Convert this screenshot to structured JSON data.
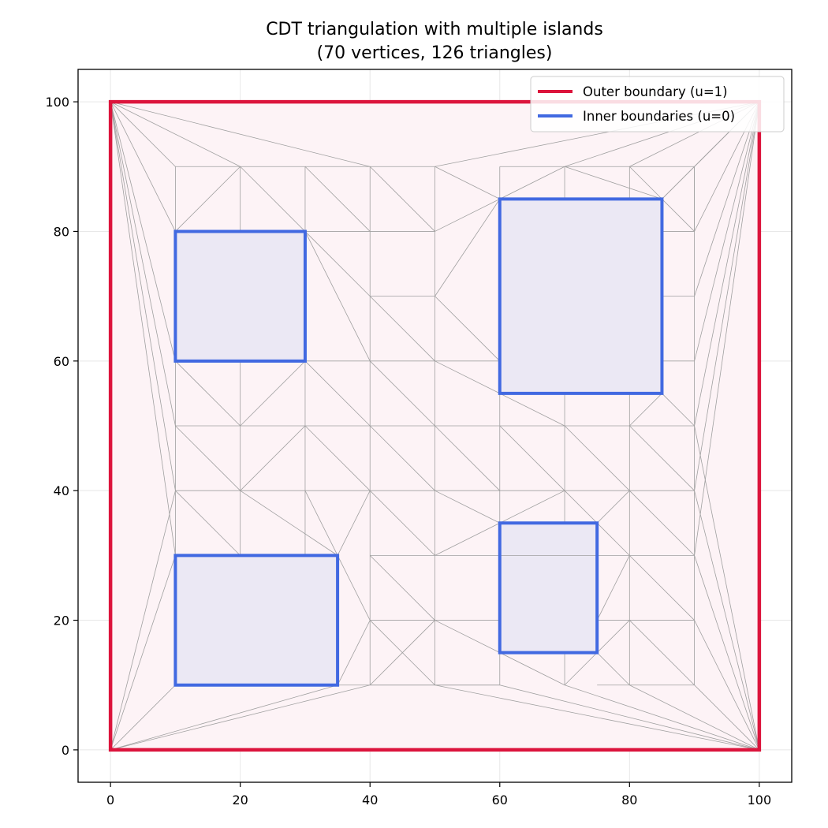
{
  "chart_data": {
    "type": "triangulation",
    "title_line1": "CDT triangulation with multiple islands",
    "title_line2": "(70 vertices, 126 triangles)",
    "xlabel": "",
    "ylabel": "",
    "xlim": [
      -5,
      105
    ],
    "ylim": [
      -5,
      105
    ],
    "x_ticks": [
      0,
      20,
      40,
      60,
      80,
      100
    ],
    "y_ticks": [
      0,
      20,
      40,
      60,
      80,
      100
    ],
    "grid": true,
    "legend_placement": "top-right",
    "colors": {
      "outer": "#dc143c",
      "inner": "#4169e1",
      "mesh": "#a0a0a0",
      "domain_fill": "#fdf3f6",
      "hole_fill": "#ebe8f4",
      "grid": "#e8e8e8"
    },
    "outer_boundary": {
      "label": "Outer boundary (u=1)",
      "polygon": [
        [
          0,
          0
        ],
        [
          100,
          0
        ],
        [
          100,
          100
        ],
        [
          0,
          100
        ]
      ]
    },
    "inner_boundaries": {
      "label": "Inner boundaries (u=0)",
      "polygons": [
        [
          [
            10,
            60
          ],
          [
            30,
            60
          ],
          [
            30,
            80
          ],
          [
            10,
            80
          ]
        ],
        [
          [
            60,
            55
          ],
          [
            85,
            55
          ],
          [
            85,
            85
          ],
          [
            60,
            85
          ]
        ],
        [
          [
            10,
            10
          ],
          [
            35,
            10
          ],
          [
            35,
            30
          ],
          [
            10,
            30
          ]
        ],
        [
          [
            60,
            15
          ],
          [
            75,
            15
          ],
          [
            75,
            35
          ],
          [
            60,
            35
          ]
        ]
      ]
    },
    "mesh_edges": [
      [
        [
          10,
          90
        ],
        [
          20,
          90
        ]
      ],
      [
        [
          20,
          90
        ],
        [
          30,
          90
        ]
      ],
      [
        [
          30,
          90
        ],
        [
          40,
          90
        ]
      ],
      [
        [
          40,
          90
        ],
        [
          50,
          90
        ]
      ],
      [
        [
          60,
          90
        ],
        [
          70,
          90
        ]
      ],
      [
        [
          70,
          90
        ],
        [
          80,
          90
        ]
      ],
      [
        [
          80,
          90
        ],
        [
          90,
          90
        ]
      ],
      [
        [
          10,
          50
        ],
        [
          90,
          50
        ]
      ],
      [
        [
          10,
          40
        ],
        [
          90,
          40
        ]
      ],
      [
        [
          40,
          30
        ],
        [
          90,
          30
        ]
      ],
      [
        [
          40,
          20
        ],
        [
          60,
          20
        ]
      ],
      [
        [
          75,
          20
        ],
        [
          90,
          20
        ]
      ],
      [
        [
          40,
          10
        ],
        [
          60,
          10
        ]
      ],
      [
        [
          75,
          10
        ],
        [
          90,
          10
        ]
      ],
      [
        [
          30,
          80
        ],
        [
          50,
          80
        ]
      ],
      [
        [
          40,
          70
        ],
        [
          50,
          70
        ]
      ],
      [
        [
          30,
          60
        ],
        [
          60,
          60
        ]
      ],
      [
        [
          85,
          60
        ],
        [
          90,
          60
        ]
      ],
      [
        [
          85,
          70
        ],
        [
          90,
          70
        ]
      ],
      [
        [
          85,
          80
        ],
        [
          90,
          80
        ]
      ],
      [
        [
          90,
          80
        ],
        [
          90,
          90
        ]
      ],
      [
        [
          10,
          90
        ],
        [
          10,
          80
        ]
      ],
      [
        [
          10,
          60
        ],
        [
          10,
          30
        ]
      ],
      [
        [
          20,
          90
        ],
        [
          20,
          80
        ]
      ],
      [
        [
          20,
          60
        ],
        [
          20,
          30
        ]
      ],
      [
        [
          30,
          90
        ],
        [
          30,
          80
        ]
      ],
      [
        [
          30,
          60
        ],
        [
          30,
          30
        ]
      ],
      [
        [
          40,
          90
        ],
        [
          40,
          10
        ]
      ],
      [
        [
          50,
          90
        ],
        [
          50,
          10
        ]
      ],
      [
        [
          60,
          90
        ],
        [
          60,
          85
        ]
      ],
      [
        [
          60,
          55
        ],
        [
          60,
          35
        ]
      ],
      [
        [
          60,
          15
        ],
        [
          60,
          10
        ]
      ],
      [
        [
          70,
          90
        ],
        [
          70,
          85
        ]
      ],
      [
        [
          70,
          55
        ],
        [
          70,
          35
        ]
      ],
      [
        [
          70,
          15
        ],
        [
          70,
          10
        ]
      ],
      [
        [
          80,
          90
        ],
        [
          80,
          85
        ]
      ],
      [
        [
          80,
          55
        ],
        [
          80,
          10
        ]
      ],
      [
        [
          90,
          90
        ],
        [
          90,
          10
        ]
      ],
      [
        [
          0,
          100
        ],
        [
          10,
          90
        ]
      ],
      [
        [
          0,
          100
        ],
        [
          20,
          90
        ]
      ],
      [
        [
          0,
          100
        ],
        [
          40,
          90
        ]
      ],
      [
        [
          0,
          100
        ],
        [
          10,
          80
        ]
      ],
      [
        [
          0,
          100
        ],
        [
          10,
          60
        ]
      ],
      [
        [
          0,
          100
        ],
        [
          10,
          50
        ]
      ],
      [
        [
          0,
          100
        ],
        [
          10,
          40
        ]
      ],
      [
        [
          0,
          100
        ],
        [
          10,
          30
        ]
      ],
      [
        [
          100,
          100
        ],
        [
          50,
          90
        ]
      ],
      [
        [
          100,
          100
        ],
        [
          70,
          90
        ]
      ],
      [
        [
          100,
          100
        ],
        [
          85,
          85
        ]
      ],
      [
        [
          100,
          100
        ],
        [
          80,
          90
        ]
      ],
      [
        [
          100,
          100
        ],
        [
          90,
          90
        ]
      ],
      [
        [
          100,
          100
        ],
        [
          90,
          80
        ]
      ],
      [
        [
          100,
          100
        ],
        [
          90,
          70
        ]
      ],
      [
        [
          100,
          100
        ],
        [
          90,
          60
        ]
      ],
      [
        [
          100,
          100
        ],
        [
          90,
          50
        ]
      ],
      [
        [
          100,
          100
        ],
        [
          90,
          40
        ]
      ],
      [
        [
          100,
          100
        ],
        [
          90,
          30
        ]
      ],
      [
        [
          0,
          0
        ],
        [
          10,
          40
        ]
      ],
      [
        [
          0,
          0
        ],
        [
          10,
          30
        ]
      ],
      [
        [
          0,
          0
        ],
        [
          10,
          10
        ]
      ],
      [
        [
          0,
          0
        ],
        [
          35,
          10
        ]
      ],
      [
        [
          0,
          0
        ],
        [
          40,
          10
        ]
      ],
      [
        [
          100,
          0
        ],
        [
          50,
          10
        ]
      ],
      [
        [
          100,
          0
        ],
        [
          60,
          10
        ]
      ],
      [
        [
          100,
          0
        ],
        [
          70,
          10
        ]
      ],
      [
        [
          100,
          0
        ],
        [
          80,
          10
        ]
      ],
      [
        [
          100,
          0
        ],
        [
          90,
          10
        ]
      ],
      [
        [
          100,
          0
        ],
        [
          90,
          20
        ]
      ],
      [
        [
          100,
          0
        ],
        [
          90,
          30
        ]
      ],
      [
        [
          100,
          0
        ],
        [
          90,
          40
        ]
      ],
      [
        [
          100,
          0
        ],
        [
          90,
          50
        ]
      ],
      [
        [
          20,
          90
        ],
        [
          10,
          80
        ]
      ],
      [
        [
          20,
          90
        ],
        [
          30,
          80
        ]
      ],
      [
        [
          30,
          90
        ],
        [
          40,
          80
        ]
      ],
      [
        [
          40,
          90
        ],
        [
          50,
          80
        ]
      ],
      [
        [
          50,
          90
        ],
        [
          60,
          85
        ]
      ],
      [
        [
          70,
          90
        ],
        [
          60,
          85
        ]
      ],
      [
        [
          70,
          90
        ],
        [
          85,
          85
        ]
      ],
      [
        [
          80,
          90
        ],
        [
          85,
          85
        ]
      ],
      [
        [
          90,
          90
        ],
        [
          85,
          85
        ]
      ],
      [
        [
          90,
          80
        ],
        [
          85,
          85
        ]
      ],
      [
        [
          30,
          80
        ],
        [
          40,
          70
        ]
      ],
      [
        [
          40,
          70
        ],
        [
          50,
          60
        ]
      ],
      [
        [
          50,
          70
        ],
        [
          60,
          60
        ]
      ],
      [
        [
          50,
          80
        ],
        [
          60,
          85
        ]
      ],
      [
        [
          50,
          70
        ],
        [
          60,
          85
        ]
      ],
      [
        [
          30,
          60
        ],
        [
          40,
          50
        ]
      ],
      [
        [
          40,
          60
        ],
        [
          50,
          50
        ]
      ],
      [
        [
          50,
          60
        ],
        [
          60,
          55
        ]
      ],
      [
        [
          60,
          55
        ],
        [
          70,
          50
        ]
      ],
      [
        [
          85,
          55
        ],
        [
          80,
          50
        ]
      ],
      [
        [
          85,
          55
        ],
        [
          90,
          50
        ]
      ],
      [
        [
          30,
          80
        ],
        [
          40,
          60
        ]
      ],
      [
        [
          10,
          60
        ],
        [
          20,
          50
        ]
      ],
      [
        [
          30,
          60
        ],
        [
          20,
          50
        ]
      ],
      [
        [
          10,
          50
        ],
        [
          20,
          40
        ]
      ],
      [
        [
          20,
          40
        ],
        [
          30,
          50
        ]
      ],
      [
        [
          30,
          50
        ],
        [
          40,
          40
        ]
      ],
      [
        [
          40,
          50
        ],
        [
          50,
          40
        ]
      ],
      [
        [
          50,
          50
        ],
        [
          60,
          40
        ]
      ],
      [
        [
          60,
          50
        ],
        [
          70,
          40
        ]
      ],
      [
        [
          70,
          50
        ],
        [
          80,
          40
        ]
      ],
      [
        [
          80,
          50
        ],
        [
          90,
          40
        ]
      ],
      [
        [
          10,
          40
        ],
        [
          20,
          30
        ]
      ],
      [
        [
          20,
          40
        ],
        [
          35,
          30
        ]
      ],
      [
        [
          30,
          40
        ],
        [
          35,
          30
        ]
      ],
      [
        [
          40,
          40
        ],
        [
          35,
          30
        ]
      ],
      [
        [
          40,
          40
        ],
        [
          50,
          30
        ]
      ],
      [
        [
          50,
          40
        ],
        [
          60,
          35
        ]
      ],
      [
        [
          60,
          35
        ],
        [
          70,
          40
        ]
      ],
      [
        [
          75,
          35
        ],
        [
          70,
          40
        ]
      ],
      [
        [
          75,
          35
        ],
        [
          80,
          40
        ]
      ],
      [
        [
          75,
          35
        ],
        [
          80,
          30
        ]
      ],
      [
        [
          35,
          30
        ],
        [
          40,
          20
        ]
      ],
      [
        [
          40,
          30
        ],
        [
          50,
          20
        ]
      ],
      [
        [
          50,
          30
        ],
        [
          60,
          35
        ]
      ],
      [
        [
          50,
          20
        ],
        [
          60,
          15
        ]
      ],
      [
        [
          40,
          20
        ],
        [
          50,
          10
        ]
      ],
      [
        [
          35,
          10
        ],
        [
          40,
          20
        ]
      ],
      [
        [
          40,
          10
        ],
        [
          50,
          20
        ]
      ],
      [
        [
          60,
          15
        ],
        [
          70,
          10
        ]
      ],
      [
        [
          75,
          15
        ],
        [
          70,
          10
        ]
      ],
      [
        [
          75,
          15
        ],
        [
          80,
          10
        ]
      ],
      [
        [
          75,
          20
        ],
        [
          80,
          30
        ]
      ],
      [
        [
          80,
          20
        ],
        [
          90,
          10
        ]
      ],
      [
        [
          80,
          30
        ],
        [
          90,
          20
        ]
      ],
      [
        [
          80,
          40
        ],
        [
          90,
          30
        ]
      ],
      [
        [
          80,
          20
        ],
        [
          75,
          15
        ]
      ],
      [
        [
          60,
          10
        ],
        [
          50,
          10
        ]
      ],
      [
        [
          35,
          10
        ],
        [
          50,
          10
        ]
      ]
    ]
  },
  "legend": [
    {
      "label": "Outer boundary (u=1)",
      "color": "#dc143c"
    },
    {
      "label": "Inner boundaries (u=0)",
      "color": "#4169e1"
    }
  ]
}
